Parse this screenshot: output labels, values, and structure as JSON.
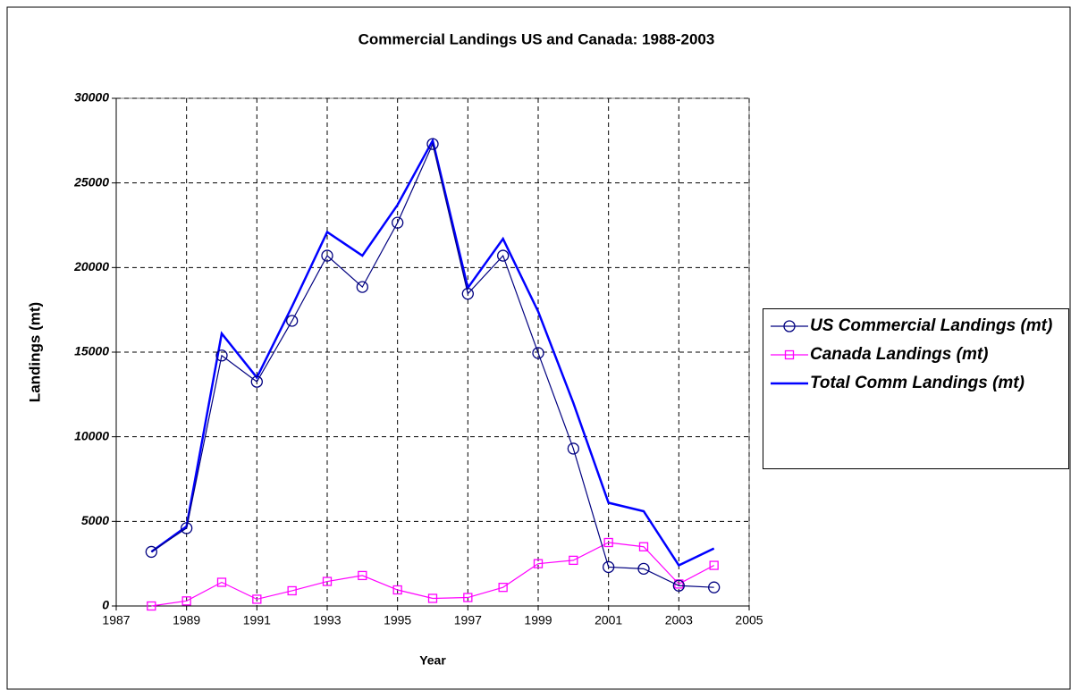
{
  "chart_data": {
    "type": "line",
    "title": "Commercial Landings US and Canada: 1988-2003",
    "x_label": "Year",
    "y_label": "Landings (mt)",
    "x": [
      1988,
      1989,
      1990,
      1991,
      1992,
      1993,
      1994,
      1995,
      1996,
      1997,
      1998,
      1999,
      2000,
      2001,
      2002,
      2003,
      2004
    ],
    "series": [
      {
        "name": "US Commercial Landings (mt)",
        "color": "#000080",
        "marker": "circle",
        "values": [
          3200,
          4600,
          14800,
          13250,
          16850,
          20700,
          18850,
          22650,
          27300,
          18450,
          20700,
          14950,
          9300,
          2300,
          2200,
          1200,
          1100
        ]
      },
      {
        "name": "Canada Landings (mt)",
        "color": "#ff00ff",
        "marker": "square",
        "values": [
          0,
          300,
          1400,
          400,
          900,
          1450,
          1800,
          950,
          450,
          500,
          1100,
          2500,
          2700,
          3750,
          3500,
          1300,
          2400
        ]
      },
      {
        "name": "Total Comm Landings (mt)",
        "color": "#0000ff",
        "marker": "none",
        "values": [
          3200,
          4700,
          16100,
          13500,
          17700,
          22100,
          20700,
          23700,
          27500,
          18800,
          21700,
          17400,
          12000,
          6100,
          5600,
          2400,
          3400
        ]
      }
    ],
    "xlim": [
      1987,
      2005
    ],
    "xticks": [
      1987,
      1989,
      1991,
      1993,
      1995,
      1997,
      1999,
      2001,
      2003,
      2005
    ],
    "ylim": [
      0,
      30000
    ],
    "yticks": [
      0,
      5000,
      10000,
      15000,
      20000,
      25000,
      30000
    ],
    "grid": true,
    "legend": "right"
  }
}
